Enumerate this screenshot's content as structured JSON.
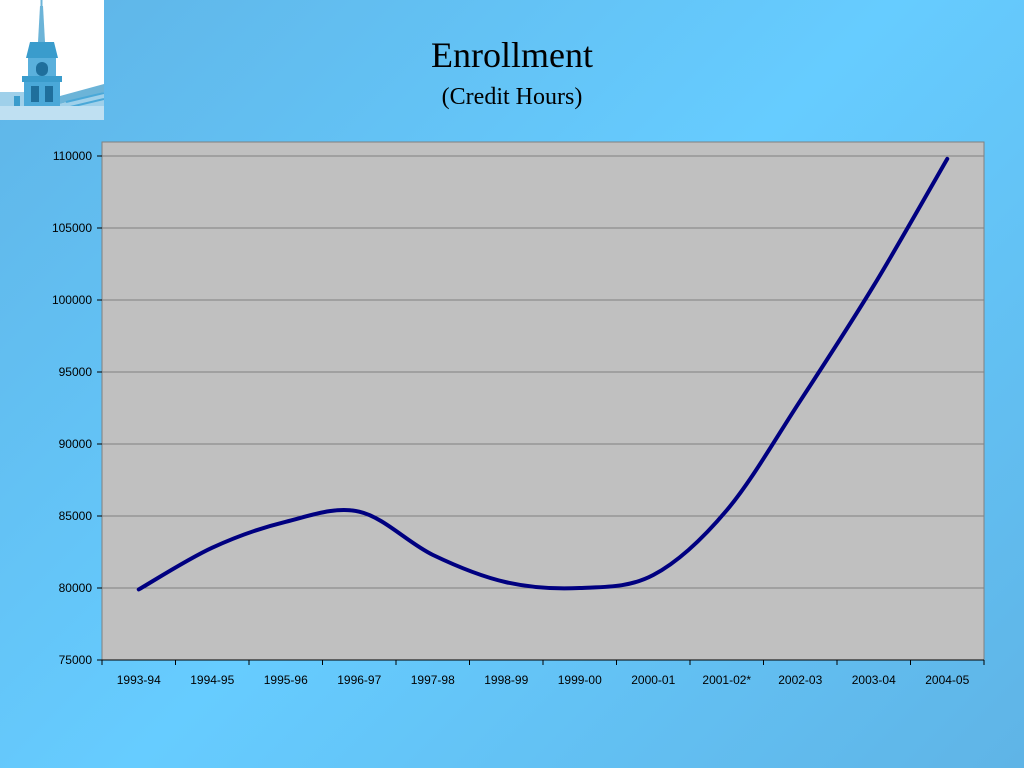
{
  "header": {
    "title": "Enrollment",
    "subtitle": "(Credit Hours)"
  },
  "chart_data": {
    "type": "line",
    "title": "Enrollment",
    "subtitle": "(Credit Hours)",
    "categories": [
      "1993-94",
      "1994-95",
      "1995-96",
      "1996-97",
      "1997-98",
      "1998-99",
      "1999-00",
      "2000-01",
      "2001-02*",
      "2002-03",
      "2003-04",
      "2004-05"
    ],
    "series": [
      {
        "values": [
          79900,
          82800,
          84600,
          85300,
          82300,
          80400,
          80000,
          80900,
          85400,
          93000,
          101000,
          109800
        ]
      }
    ],
    "ylim": [
      75000,
      110000
    ],
    "yticks": [
      75000,
      80000,
      85000,
      90000,
      95000,
      100000,
      105000,
      110000
    ],
    "grid": true,
    "legend": "none",
    "colors": {
      "line": "#000080",
      "plot_background": "#c0c0c0",
      "gridline": "#808080"
    }
  },
  "logo": {
    "icon": "building-tower-icon"
  }
}
